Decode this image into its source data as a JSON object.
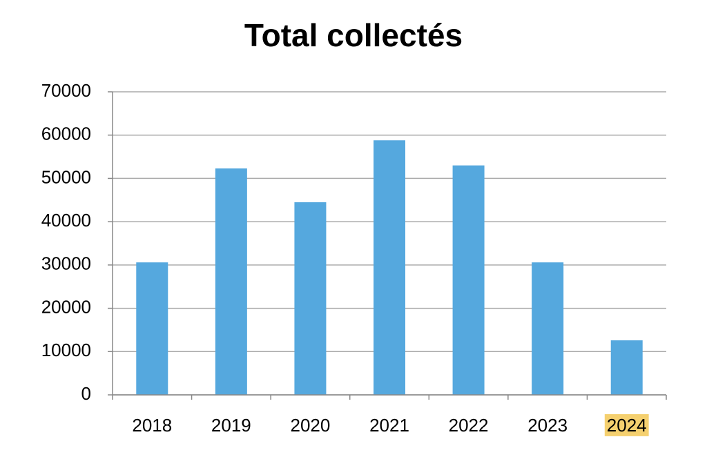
{
  "chart_data": {
    "type": "bar",
    "title": "Total collectés",
    "categories": [
      "2018",
      "2019",
      "2020",
      "2021",
      "2022",
      "2023",
      "2024"
    ],
    "values": [
      30600,
      52300,
      44500,
      58800,
      53000,
      30600,
      12600
    ],
    "color": "#55a8de",
    "category_label_backgrounds": [
      null,
      null,
      null,
      null,
      null,
      null,
      "#f5d06f"
    ],
    "ylim": [
      0,
      70000
    ],
    "yticks": [
      0,
      10000,
      20000,
      30000,
      40000,
      50000,
      60000,
      70000
    ],
    "grid": true
  }
}
